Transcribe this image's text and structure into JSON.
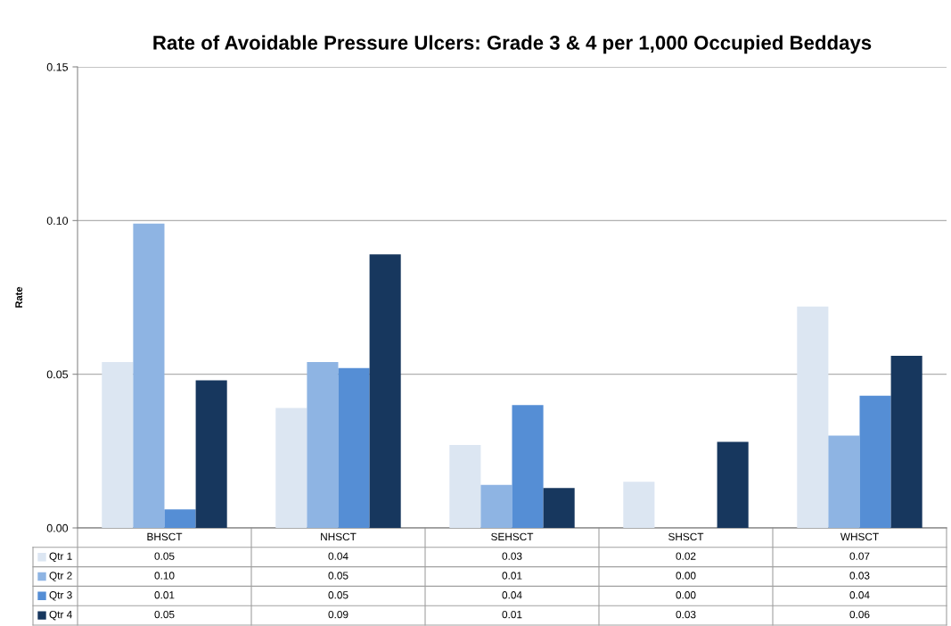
{
  "chart_data": {
    "type": "bar",
    "title": "Rate of Avoidable Pressure Ulcers: Grade 3 & 4 per 1,000 Occupied Beddays",
    "ylabel": "Rate",
    "categories": [
      "BHSCT",
      "NHSCT",
      "SEHSCT",
      "SHSCT",
      "WHSCT"
    ],
    "series": [
      {
        "name": "Qtr 1",
        "color": "#dce6f2",
        "values": [
          0.054,
          0.039,
          0.027,
          0.015,
          0.072
        ],
        "value_labels": [
          "0.05",
          "0.04",
          "0.03",
          "0.02",
          "0.07"
        ]
      },
      {
        "name": "Qtr 2",
        "color": "#8eb4e3",
        "values": [
          0.099,
          0.054,
          0.014,
          0,
          0.03
        ],
        "value_labels": [
          "0.10",
          "0.05",
          "0.01",
          "0.00",
          "0.03"
        ]
      },
      {
        "name": "Qtr 3",
        "color": "#558ed5",
        "values": [
          0.006,
          0.052,
          0.04,
          0,
          0.043
        ],
        "value_labels": [
          "0.01",
          "0.05",
          "0.04",
          "0.00",
          "0.04"
        ]
      },
      {
        "name": "Qtr 4",
        "color": "#17375e",
        "values": [
          0.048,
          0.089,
          0.013,
          0.028,
          0.056
        ],
        "value_labels": [
          "0.05",
          "0.09",
          "0.01",
          "0.03",
          "0.06"
        ]
      }
    ],
    "ylim": [
      0,
      0.15
    ],
    "yticks": [
      {
        "value": 0,
        "label": "0.00"
      },
      {
        "value": 0.05,
        "label": "0.05"
      },
      {
        "value": 0.1,
        "label": "0.10"
      },
      {
        "value": 0.15,
        "label": "0.15"
      }
    ],
    "grid": "y",
    "legend": "bottom left"
  }
}
